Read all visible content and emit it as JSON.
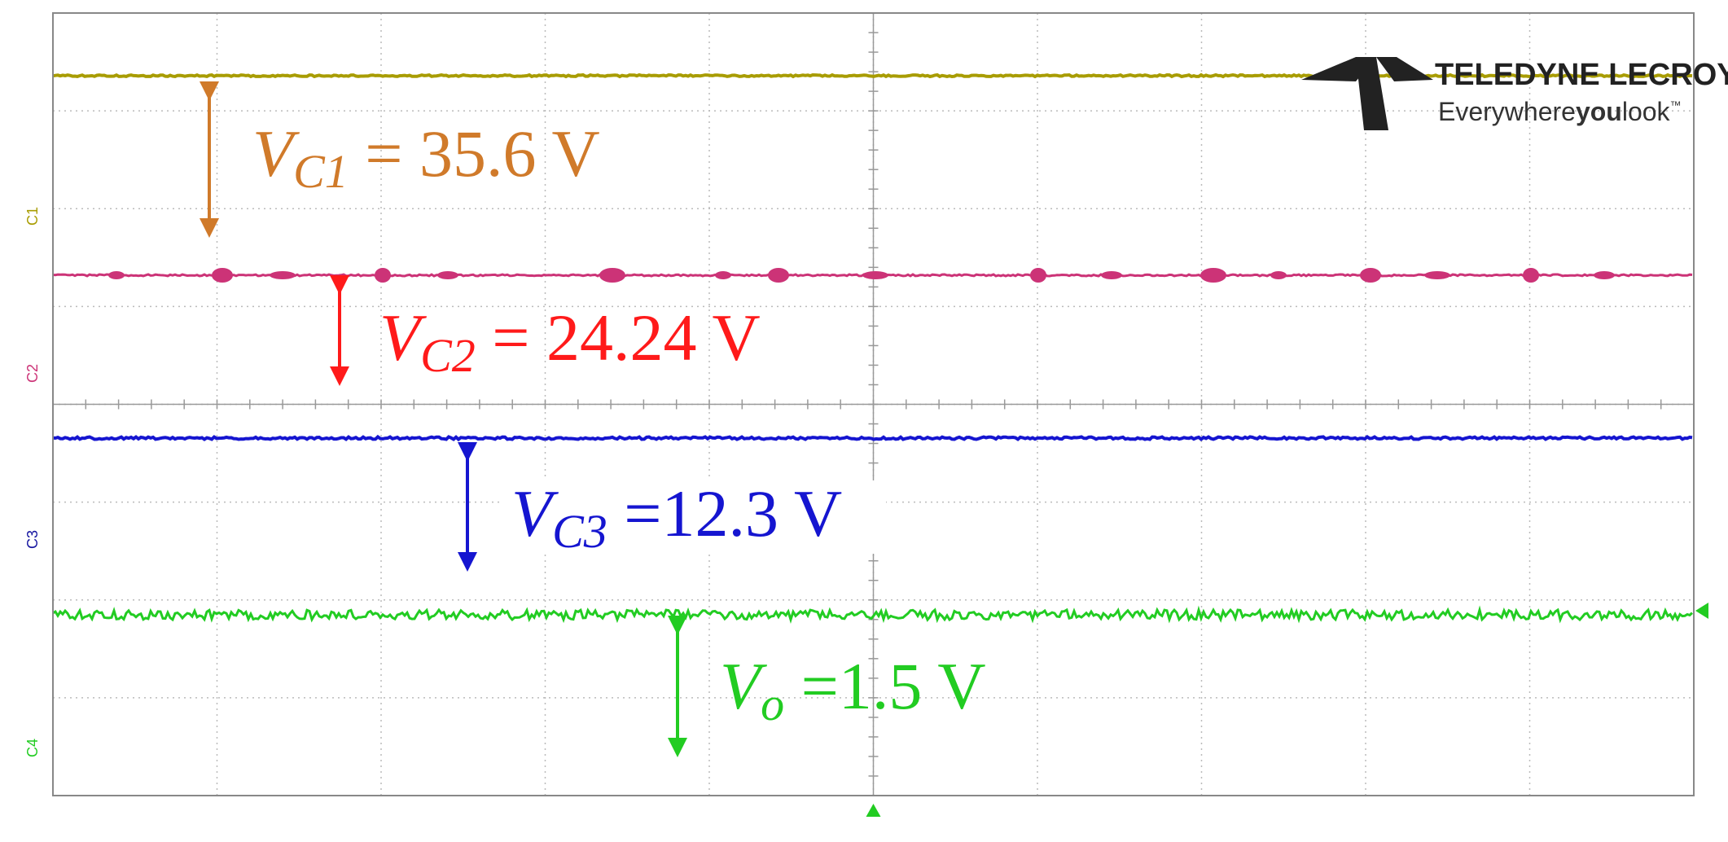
{
  "logo": {
    "brand": "TELEDYNE LECROY",
    "tagline": {
      "lead": "Everywhere",
      "bold": "you",
      "tail": "look",
      "mark": "™"
    }
  },
  "channels": [
    "C1",
    "C2",
    "C3",
    "C4"
  ],
  "annotations": [
    {
      "symbol": "V",
      "subscript": "C1",
      "text": " = 35.6 V"
    },
    {
      "symbol": "V",
      "subscript": "C2",
      "text": " = 24.24 V"
    },
    {
      "symbol": "V",
      "subscript": "C3",
      "text": " =12.3 V"
    },
    {
      "symbol": "V",
      "subscript": "o",
      "text": " =1.5 V"
    }
  ]
}
